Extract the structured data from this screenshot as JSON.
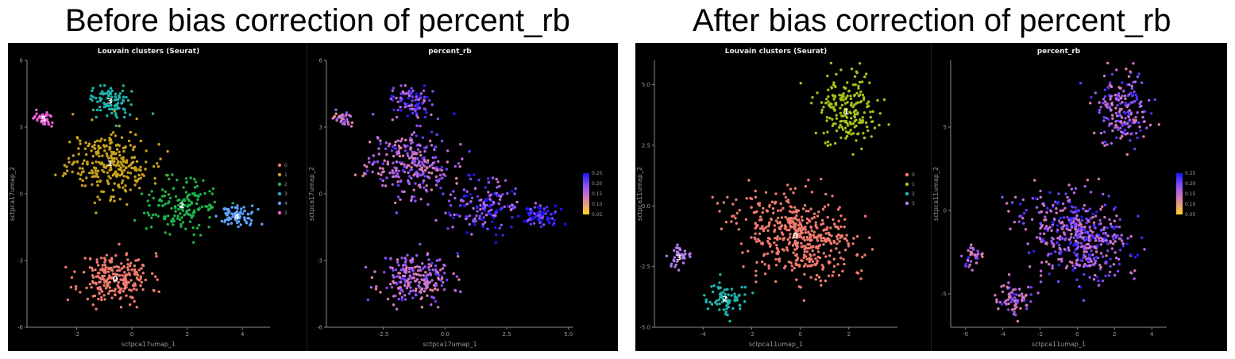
{
  "titles": {
    "left": "Before bias correction of percent_rb",
    "right": "After bias correction of percent_rb"
  },
  "chart_data": [
    {
      "type": "scatter",
      "title": "Louvain clusters (Seurat)",
      "xlabel": "sctpca17umap_1",
      "ylabel": "sctpca17umap_2",
      "xticks": [
        "-2",
        "0",
        "2",
        "4"
      ],
      "yticks": [
        "6",
        "3",
        "0",
        "-3",
        "-6"
      ],
      "xlim": [
        -3.8,
        5.0
      ],
      "ylim": [
        -6,
        6
      ],
      "legend": [
        "0",
        "1",
        "2",
        "3",
        "4",
        "5"
      ],
      "legend_position": "right",
      "cluster_labels": [
        "0",
        "1",
        "2",
        "3",
        "4",
        "5"
      ],
      "clusters": [
        {
          "name": "0",
          "color": "#f07a6e",
          "cx": -0.6,
          "cy": -3.8,
          "sx": 0.85,
          "sy": 0.75,
          "n": 240
        },
        {
          "name": "1",
          "color": "#c9a21a",
          "cx": -0.8,
          "cy": 1.4,
          "sx": 1.0,
          "sy": 1.0,
          "n": 270
        },
        {
          "name": "2",
          "color": "#1fb24a",
          "cx": 1.8,
          "cy": -0.5,
          "sx": 0.8,
          "sy": 0.8,
          "n": 160
        },
        {
          "name": "3",
          "color": "#1fb5b0",
          "cx": -0.8,
          "cy": 4.2,
          "sx": 0.45,
          "sy": 0.5,
          "n": 90
        },
        {
          "name": "4",
          "color": "#5fa3ff",
          "cx": 3.8,
          "cy": -1.0,
          "sx": 0.4,
          "sy": 0.3,
          "n": 80
        },
        {
          "name": "5",
          "color": "#ee60d8",
          "cx": -3.2,
          "cy": 3.4,
          "sx": 0.25,
          "sy": 0.2,
          "n": 40
        }
      ]
    },
    {
      "type": "scatter",
      "title": "percent_rb",
      "xlabel": "sctpca17umap_1",
      "ylabel": "sctpca17umap_2",
      "xticks": [
        "-2.5",
        "0.0",
        "2.5",
        "5.0"
      ],
      "yticks": [
        "6",
        "3",
        "0",
        "-3",
        "-6"
      ],
      "xlim": [
        -4.8,
        5.2
      ],
      "ylim": [
        -6,
        6
      ],
      "colorbar": [
        "0.25",
        "0.20",
        "0.15",
        "0.10",
        "0.05"
      ],
      "colorbar_range": [
        0.05,
        0.25
      ],
      "mirror_of": 0,
      "cluster_values": [
        0.17,
        0.17,
        0.21,
        0.2,
        0.25,
        0.16
      ]
    },
    {
      "type": "scatter",
      "title": "Louvain clusters (Seurat)",
      "xlabel": "sctpca11umap_1",
      "ylabel": "sctpca11umap_2",
      "xticks": [
        "-4",
        "-2",
        "0",
        "2"
      ],
      "yticks": [
        "5.0",
        "2.5",
        "0.0",
        "-2.5",
        "-5.0"
      ],
      "xlim": [
        -6.0,
        4.0
      ],
      "ylim": [
        -5,
        6
      ],
      "legend": [
        "0",
        "1",
        "2",
        "3"
      ],
      "legend_position": "right",
      "cluster_labels": [
        "0",
        "1",
        "2",
        "3"
      ],
      "clusters": [
        {
          "name": "0",
          "color": "#f07a6e",
          "cx": -0.2,
          "cy": -1.2,
          "sx": 1.7,
          "sy": 1.1,
          "n": 480,
          "rot": -0.45
        },
        {
          "name": "1",
          "color": "#a3c21a",
          "cx": 1.9,
          "cy": 3.9,
          "sx": 0.8,
          "sy": 1.0,
          "n": 200
        },
        {
          "name": "2",
          "color": "#1fb5b0",
          "cx": -3.1,
          "cy": -3.8,
          "sx": 0.6,
          "sy": 0.4,
          "n": 70
        },
        {
          "name": "3",
          "color": "#b57cf0",
          "cx": -5.0,
          "cy": -2.1,
          "sx": 0.25,
          "sy": 0.35,
          "n": 35
        }
      ]
    },
    {
      "type": "scatter",
      "title": "percent_rb",
      "xlabel": "sctpca11umap_1",
      "ylabel": "sctpca11umap_2",
      "xticks": [
        "-6",
        "-4",
        "-2",
        "0",
        "2",
        "4"
      ],
      "yticks": [
        "5",
        "0",
        "-5"
      ],
      "xlim": [
        -6.8,
        4.8
      ],
      "ylim": [
        -7,
        9
      ],
      "colorbar": [
        "0.25",
        "0.20",
        "0.15",
        "0.10",
        "0.05"
      ],
      "colorbar_range": [
        0.05,
        0.25
      ],
      "mirror_of": 2,
      "cluster_values": [
        0.19,
        0.18,
        0.17,
        0.17
      ]
    }
  ]
}
